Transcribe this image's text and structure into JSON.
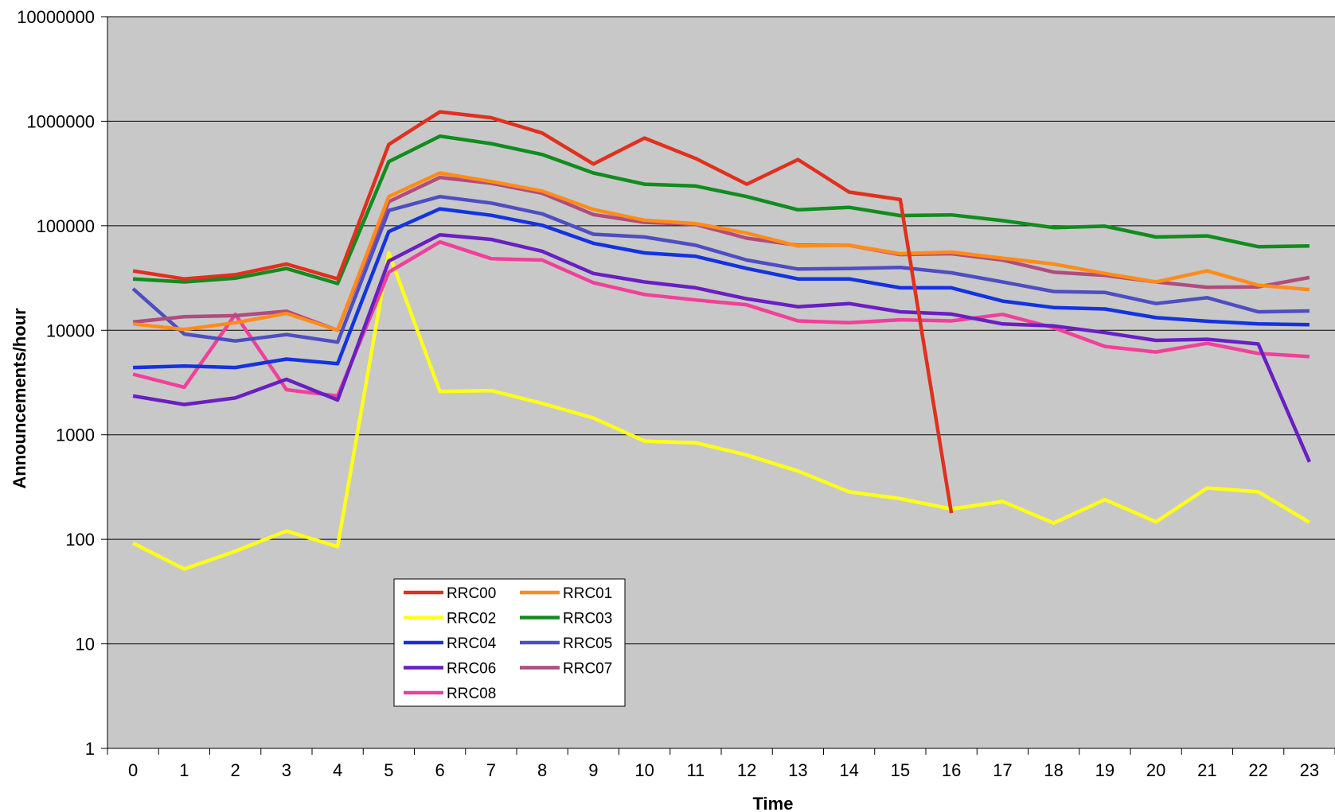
{
  "chart_data": {
    "type": "line",
    "title": "",
    "xlabel": "Time",
    "ylabel": "Announcements/hour",
    "y_scale": "log",
    "ylim": [
      1,
      10000000
    ],
    "yticks": [
      "1",
      "10",
      "100",
      "1000",
      "10000",
      "100000",
      "1000000",
      "10000000"
    ],
    "categories": [
      "0",
      "1",
      "2",
      "3",
      "4",
      "5",
      "6",
      "7",
      "8",
      "9",
      "10",
      "11",
      "12",
      "13",
      "14",
      "15",
      "16",
      "17",
      "18",
      "19",
      "20",
      "21",
      "22",
      "23"
    ],
    "grid": "horizontal",
    "plot_background": "#c8c8c8",
    "legend_position": "inside-lower-left",
    "series": [
      {
        "name": "RRC00",
        "color": "#e0301e",
        "values": [
          37000,
          31000,
          34000,
          43000,
          31000,
          600000,
          1230000,
          1080000,
          770000,
          390000,
          690000,
          440000,
          250000,
          430000,
          210000,
          178000,
          178,
          null,
          null,
          null,
          null,
          null,
          null,
          null
        ]
      },
      {
        "name": "RRC01",
        "color": "#ff8c1a",
        "values": [
          11500,
          10200,
          11800,
          14500,
          10000,
          190000,
          320000,
          265000,
          215000,
          143000,
          113000,
          105000,
          85000,
          64000,
          65000,
          54000,
          56000,
          49000,
          43000,
          35000,
          29000,
          37000,
          27000,
          24500
        ]
      },
      {
        "name": "RRC02",
        "color": "#ffff1a",
        "values": [
          92,
          52,
          77,
          120,
          85,
          55000,
          2600,
          2650,
          2000,
          1450,
          870,
          840,
          640,
          450,
          285,
          245,
          195,
          230,
          143,
          240,
          147,
          310,
          285,
          145
        ]
      },
      {
        "name": "RRC03",
        "color": "#118c1e",
        "values": [
          31000,
          29000,
          31500,
          39000,
          28000,
          410000,
          720000,
          610000,
          480000,
          320000,
          250000,
          240000,
          190000,
          142000,
          150000,
          125000,
          127000,
          112000,
          96000,
          99000,
          78000,
          80000,
          63000,
          64000
        ]
      },
      {
        "name": "RRC04",
        "color": "#1433e0",
        "values": [
          4400,
          4550,
          4400,
          5300,
          4800,
          88000,
          145000,
          126000,
          101000,
          68000,
          55000,
          51000,
          39000,
          31000,
          31000,
          25500,
          25500,
          19000,
          16500,
          16000,
          13200,
          12200,
          11500,
          11300
        ]
      },
      {
        "name": "RRC05",
        "color": "#4e4ec2",
        "values": [
          25000,
          9200,
          7900,
          9100,
          7700,
          140000,
          190000,
          165000,
          130000,
          83000,
          78000,
          65000,
          47000,
          38500,
          39000,
          40000,
          35500,
          29000,
          23500,
          23000,
          18000,
          20500,
          15000,
          15300
        ]
      },
      {
        "name": "RRC06",
        "color": "#6a1fc2",
        "values": [
          2350,
          1950,
          2250,
          3400,
          2150,
          46000,
          82000,
          74000,
          57000,
          35000,
          29000,
          25500,
          20000,
          16800,
          18000,
          15000,
          14300,
          11500,
          11000,
          9500,
          8000,
          8200,
          7400,
          550
        ]
      },
      {
        "name": "RRC07",
        "color": "#b04c7e",
        "values": [
          12000,
          13500,
          13800,
          15200,
          10000,
          170000,
          290000,
          255000,
          205000,
          128000,
          108000,
          103000,
          76000,
          65000,
          65000,
          53000,
          54000,
          47000,
          36000,
          33500,
          29000,
          25800,
          26000,
          32000
        ]
      },
      {
        "name": "RRC08",
        "color": "#f0409a",
        "values": [
          3800,
          2850,
          14200,
          2700,
          2350,
          36000,
          70000,
          48500,
          47000,
          28500,
          22000,
          19500,
          17500,
          12300,
          11800,
          12600,
          12300,
          14200,
          10600,
          7000,
          6200,
          7500,
          6000,
          5600
        ]
      }
    ]
  }
}
